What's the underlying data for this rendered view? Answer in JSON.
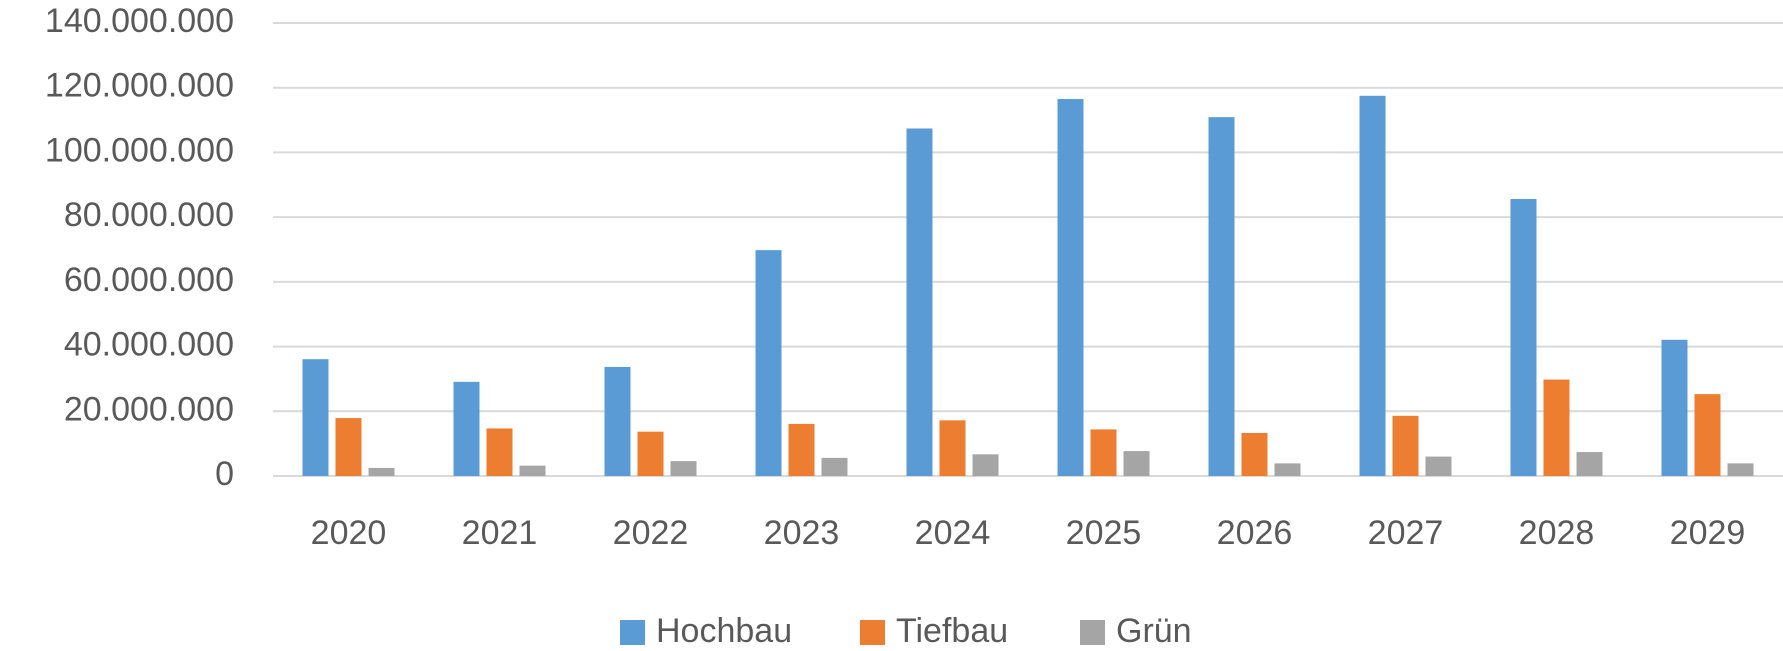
{
  "chart_data": {
    "type": "bar",
    "categories": [
      "2020",
      "2021",
      "2022",
      "2023",
      "2024",
      "2025",
      "2026",
      "2027",
      "2028",
      "2029"
    ],
    "series": [
      {
        "name": "Hochbau",
        "color": "#5b9bd5",
        "values": [
          36100000,
          29100000,
          33700000,
          69800000,
          107400000,
          116500000,
          110900000,
          117500000,
          85600000,
          42100000
        ]
      },
      {
        "name": "Tiefbau",
        "color": "#ed7d31",
        "values": [
          17900000,
          14700000,
          13700000,
          16100000,
          17200000,
          14400000,
          13300000,
          18600000,
          29800000,
          25300000
        ]
      },
      {
        "name": "Grün",
        "color": "#a5a5a5",
        "values": [
          2500000,
          3200000,
          4600000,
          5600000,
          6700000,
          7700000,
          3900000,
          6000000,
          7400000,
          3900000
        ]
      }
    ],
    "ylim": [
      0,
      140000000
    ],
    "yticks": [
      0,
      {
        "value": 20000000,
        "label": "20.000.000"
      },
      {
        "value": 40000000,
        "label": "40.000.000"
      },
      {
        "value": 60000000,
        "label": "60.000.000"
      },
      {
        "value": 80000000,
        "label": "80.000.000"
      },
      {
        "value": 100000000,
        "label": "100.000.000"
      },
      {
        "value": 120000000,
        "label": "120.000.000"
      },
      {
        "value": 140000000,
        "label": "140.000.000"
      }
    ],
    "grid": true,
    "legend": "bottom"
  }
}
